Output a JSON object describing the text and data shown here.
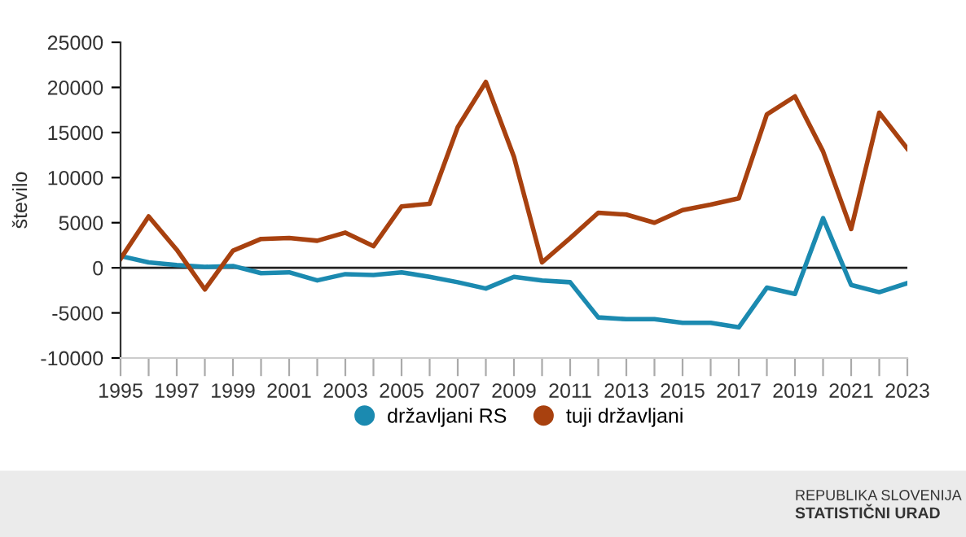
{
  "chart_data": {
    "type": "line",
    "ylabel": "število",
    "x": [
      1995,
      1996,
      1997,
      1998,
      1999,
      2000,
      2001,
      2002,
      2003,
      2004,
      2005,
      2006,
      2007,
      2008,
      2009,
      2010,
      2011,
      2012,
      2013,
      2014,
      2015,
      2016,
      2017,
      2018,
      2019,
      2020,
      2021,
      2022,
      2023
    ],
    "series": [
      {
        "name": "državljani RS",
        "color": "#1b8ab0",
        "values": [
          1300,
          600,
          300,
          100,
          200,
          -600,
          -500,
          -1400,
          -700,
          -800,
          -500,
          -1000,
          -1600,
          -2300,
          -1000,
          -1400,
          -1600,
          -5500,
          -5700,
          -5700,
          -6100,
          -6100,
          -6600,
          -2200,
          -2900,
          5500,
          -1900,
          -2700,
          -1700
        ]
      },
      {
        "name": "tuji državljani",
        "color": "#a8410f",
        "values": [
          1000,
          5700,
          2000,
          -2400,
          1900,
          3200,
          3300,
          3000,
          3900,
          2400,
          6800,
          7100,
          15600,
          20600,
          12300,
          600,
          3300,
          6100,
          5900,
          5000,
          6400,
          7000,
          7700,
          17000,
          19000,
          12900,
          4300,
          17200,
          13200
        ]
      }
    ],
    "xlim": [
      1995,
      2023
    ],
    "xticks": [
      1995,
      {
        "value": 1996,
        "label": null
      },
      1997,
      {
        "value": 1998,
        "label": null
      },
      1999,
      {
        "value": 2000,
        "label": null
      },
      2001,
      {
        "value": 2002,
        "label": null
      },
      2003,
      {
        "value": 2004,
        "label": null
      },
      2005,
      {
        "value": 2006,
        "label": null
      },
      2007,
      {
        "value": 2008,
        "label": null
      },
      2009,
      {
        "value": 2010,
        "label": null
      },
      2011,
      {
        "value": 2012,
        "label": null
      },
      2013,
      {
        "value": 2014,
        "label": null
      },
      2015,
      {
        "value": 2016,
        "label": null
      },
      2017,
      {
        "value": 2018,
        "label": null
      },
      2019,
      {
        "value": 2020,
        "label": null
      },
      2021,
      {
        "value": 2022,
        "label": null
      },
      2023
    ],
    "ylim": [
      -10000,
      25000
    ],
    "yticks": [
      -10000,
      -5000,
      0,
      5000,
      10000,
      15000,
      20000,
      25000
    ],
    "ref_lines": [
      {
        "axis": "y",
        "value": 0,
        "color": "#222222"
      }
    ],
    "legend": "bottom",
    "grid": false,
    "line_style": "solid",
    "annotations": [
      "REPUBLIKA SLOVENIJA",
      "STATISTIČNI URAD"
    ]
  }
}
